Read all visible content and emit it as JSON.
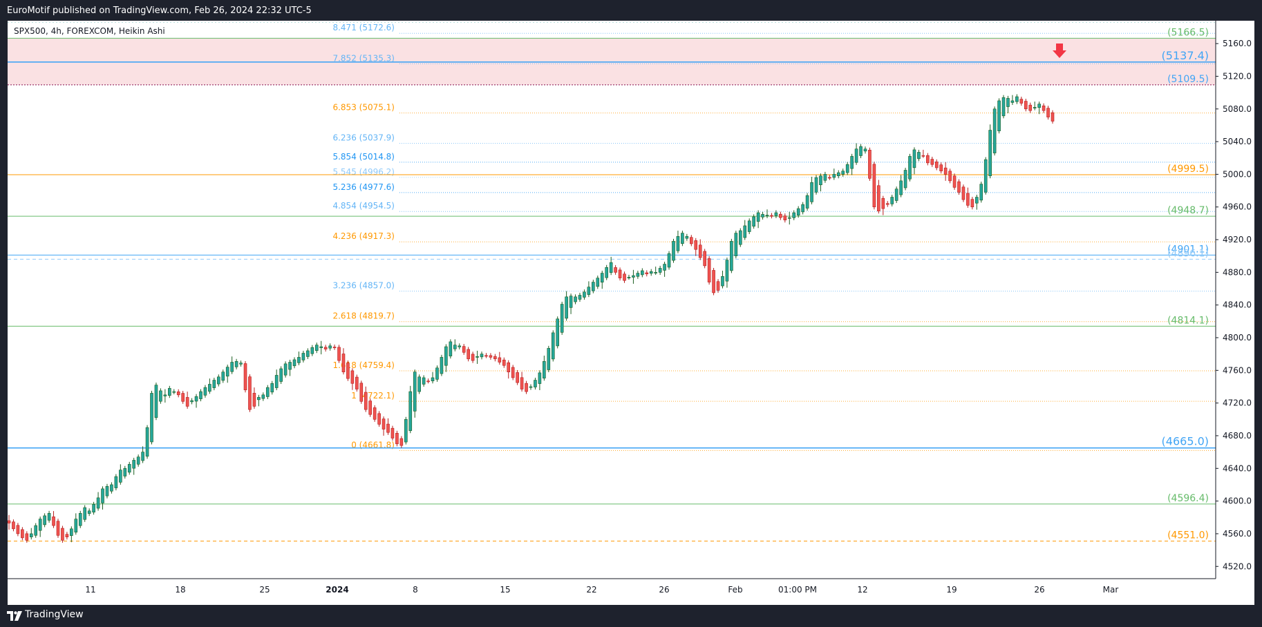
{
  "header": {
    "published_text": "EuroMotif published on TradingView.com, Feb 26, 2024 22:32 UTC-5"
  },
  "footer": {
    "brand": "TradingView"
  },
  "chart_data": {
    "type": "candlestick",
    "title": "",
    "symbol_legend": "SPX500, 4h, FOREXCOM, Heikin Ashi",
    "ylim": [
      4505,
      5188
    ],
    "y_ticks": [
      "5160.0",
      "5120.0",
      "5080.0",
      "5040.0",
      "5000.0",
      "4960.0",
      "4920.0",
      "4880.0",
      "4840.0",
      "4800.0",
      "4760.0",
      "4720.0",
      "4680.0",
      "4640.0",
      "4600.0",
      "4560.0",
      "4520.0"
    ],
    "x_ticks": [
      "11",
      "18",
      "25",
      "2024",
      "8",
      "15",
      "22",
      "26",
      "Feb",
      "01:00 PM",
      "12",
      "19",
      "26",
      "Mar"
    ],
    "fib_levels": [
      {
        "label": "8.471 (5172.6)",
        "value": 5172.6,
        "color": "#64b5f6"
      },
      {
        "label": "7.852 (5135.3)",
        "value": 5135.3,
        "color": "#64b5f6"
      },
      {
        "label": "6.853 (5075.1)",
        "value": 5075.1,
        "color": "#ff9800"
      },
      {
        "label": "6.236 (5037.9)",
        "value": 5037.9,
        "color": "#64b5f6"
      },
      {
        "label": "5.854 (5014.8)",
        "value": 5014.8,
        "color": "#2196f3"
      },
      {
        "label": "5.545 (4996.2)",
        "value": 4996.2,
        "color": "#90caf9"
      },
      {
        "label": "5.236 (4977.6)",
        "value": 4977.6,
        "color": "#2196f3"
      },
      {
        "label": "4.854 (4954.5)",
        "value": 4954.5,
        "color": "#64b5f6"
      },
      {
        "label": "4.236 (4917.3)",
        "value": 4917.3,
        "color": "#ff9800"
      },
      {
        "label": "3.236 (4857.0)",
        "value": 4857.0,
        "color": "#64b5f6"
      },
      {
        "label": "2.618 (4819.7)",
        "value": 4819.7,
        "color": "#ff9800"
      },
      {
        "label": "1.618 (4759.4)",
        "value": 4759.4,
        "color": "#ff9800"
      },
      {
        "label": "1 (4722.1)",
        "value": 4722.1,
        "color": "#ff9800"
      },
      {
        "label": "0 (4661.8)",
        "value": 4661.8,
        "color": "#ff9800"
      }
    ],
    "horizontal_levels": [
      {
        "label": "(5166.5)",
        "value": 5166.5,
        "color": "#66bb6a"
      },
      {
        "label": "(5137.4)",
        "value": 5137.4,
        "color": "#42a5f5"
      },
      {
        "label": "(5109.5)",
        "value": 5109.5,
        "color": "#42a5f5"
      },
      {
        "label": "(4999.5)",
        "value": 4999.5,
        "color": "#ff9800"
      },
      {
        "label": "(4948.7)",
        "value": 4948.7,
        "color": "#66bb6a"
      },
      {
        "label": "(4901.1)",
        "value": 4901.1,
        "color": "#42a5f5"
      },
      {
        "label": "(4896.1)",
        "value": 4896.1,
        "color": "#90caf9"
      },
      {
        "label": "(4814.1)",
        "value": 4814.1,
        "color": "#66bb6a"
      },
      {
        "label": "(4665.0)",
        "value": 4665.0,
        "color": "#42a5f5"
      },
      {
        "label": "(4596.4)",
        "value": 4596.4,
        "color": "#66bb6a"
      },
      {
        "label": "(4551.0)",
        "value": 4551.0,
        "color": "#ff9800"
      }
    ],
    "resistance_zone": {
      "from": 5109.5,
      "to": 5166.5,
      "color": "#f8d7da"
    },
    "signal": {
      "type": "down-arrow",
      "value": 5150,
      "color": "#f23645"
    },
    "colors": {
      "up": "#26a69a",
      "down": "#ef5350",
      "up_dark": "#1b5e20",
      "down_dark": "#b71c1c"
    },
    "candles_close": [
      4573,
      4566,
      4560,
      4555,
      4552,
      4560,
      4570,
      4578,
      4582,
      4585,
      4570,
      4558,
      4552,
      4556,
      4566,
      4578,
      4585,
      4592,
      4588,
      4596,
      4604,
      4615,
      4618,
      4620,
      4630,
      4638,
      4640,
      4645,
      4650,
      4654,
      4660,
      4690,
      4732,
      4742,
      4735,
      4730,
      4738,
      4734,
      4730,
      4722,
      4716,
      4723,
      4728,
      4734,
      4739,
      4743,
      4748,
      4752,
      4758,
      4764,
      4770,
      4771,
      4769,
      4736,
      4712,
      4716,
      4727,
      4730,
      4739,
      4744,
      4754,
      4762,
      4768,
      4770,
      4773,
      4776,
      4781,
      4784,
      4788,
      4791,
      4789,
      4786,
      4790,
      4788,
      4772,
      4758,
      4750,
      4744,
      4737,
      4722,
      4712,
      4706,
      4700,
      4694,
      4688,
      4684,
      4677,
      4670,
      4668,
      4700,
      4734,
      4758,
      4752,
      4751,
      4747,
      4751,
      4763,
      4776,
      4789,
      4795,
      4791,
      4790,
      4782,
      4774,
      4772,
      4777,
      4780,
      4778,
      4776,
      4774,
      4770,
      4766,
      4758,
      4751,
      4745,
      4737,
      4734,
      4740,
      4748,
      4757,
      4771,
      4787,
      4806,
      4823,
      4841,
      4850,
      4851,
      4850,
      4852,
      4856,
      4862,
      4868,
      4873,
      4879,
      4886,
      4892,
      4880,
      4873,
      4870,
      4874,
      4876,
      4879,
      4882,
      4878,
      4881,
      4880,
      4885,
      4890,
      4903,
      4918,
      4924,
      4928,
      4924,
      4915,
      4908,
      4898,
      4888,
      4868,
      4855,
      4858,
      4875,
      4895,
      4918,
      4928,
      4931,
      4937,
      4943,
      4948,
      4953,
      4951,
      4950,
      4949,
      4953,
      4947,
      4944,
      4947,
      4953,
      4958,
      4963,
      4974,
      4990,
      4996,
      4998,
      5000,
      4996,
      5000,
      5002,
      5004,
      5012,
      5022,
      5031,
      5034,
      5031,
      4995,
      4960,
      4955,
      4958,
      4963,
      4972,
      4982,
      4992,
      5005,
      5022,
      5030,
      5027,
      5023,
      5014,
      5012,
      5008,
      5004,
      5000,
      4992,
      4984,
      4978,
      4969,
      4962,
      4960,
      4972,
      4988,
      5018,
      5054,
      5080,
      5090,
      5094,
      5093,
      5090,
      5095,
      5087,
      5080,
      5078,
      5082,
      5086,
      5078,
      5070,
      5065
    ]
  }
}
